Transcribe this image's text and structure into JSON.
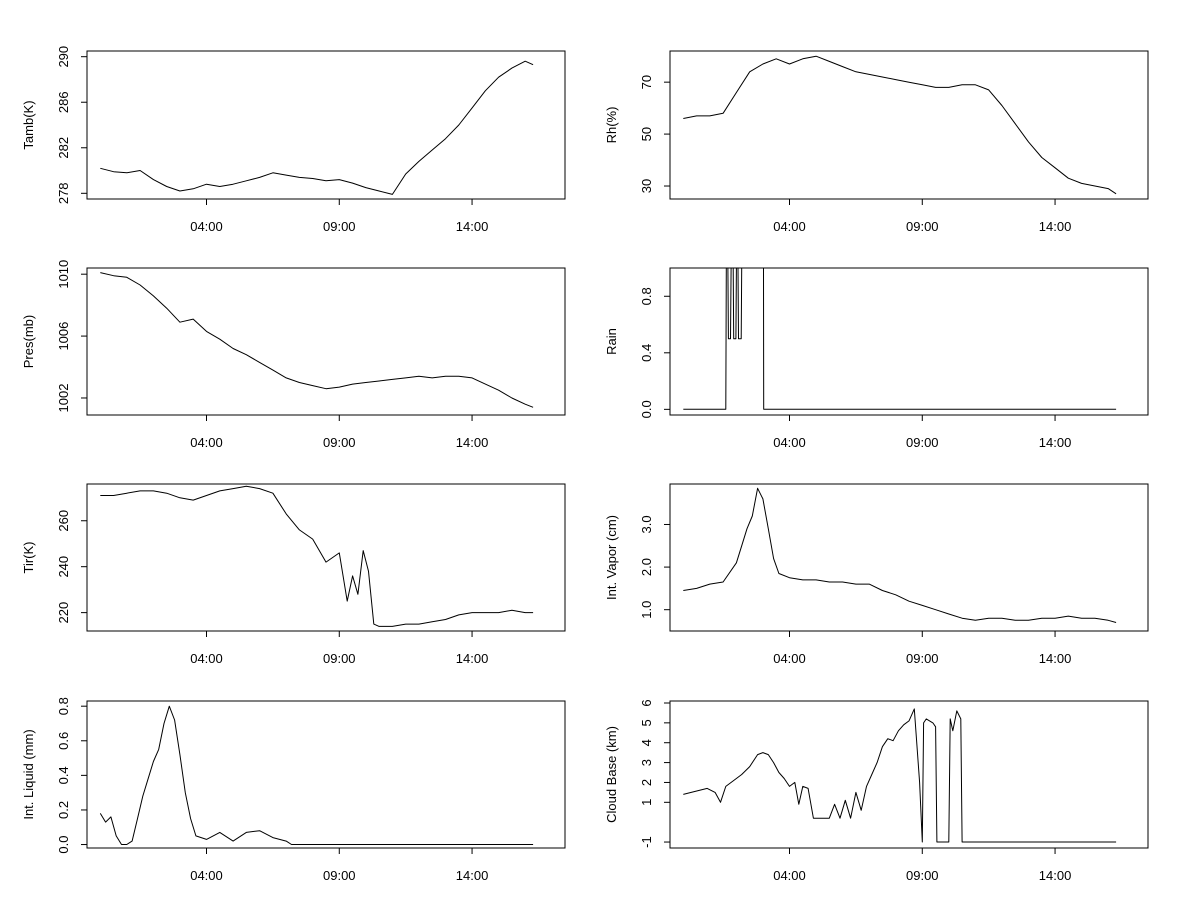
{
  "figure": {
    "background": "#ffffff",
    "ink": "#000000",
    "x_axis": {
      "ticks": [
        4,
        9,
        14
      ],
      "tick_labels": [
        "04:00",
        "09:00",
        "14:00"
      ],
      "xlim": [
        -0.5,
        17.5
      ],
      "unit": "hours"
    }
  },
  "chart_data": [
    {
      "type": "line",
      "ylabel": "Tamb(K)",
      "ylim": [
        277.5,
        290.5
      ],
      "yticks": [
        278,
        282,
        286,
        290
      ],
      "ytick_labels": [
        "278",
        "282",
        "286",
        "290"
      ],
      "x": [
        0.0,
        0.5,
        1.0,
        1.5,
        2.0,
        2.5,
        3.0,
        3.5,
        4.0,
        4.5,
        5.0,
        5.5,
        6.0,
        6.5,
        7.0,
        7.5,
        8.0,
        8.5,
        9.0,
        9.5,
        10.0,
        10.5,
        11.0,
        11.5,
        12.0,
        12.5,
        13.0,
        13.5,
        14.0,
        14.5,
        15.0,
        15.5,
        16.0,
        16.3
      ],
      "values": [
        280.2,
        279.9,
        279.8,
        280.0,
        279.2,
        278.6,
        278.2,
        278.4,
        278.8,
        278.6,
        278.8,
        279.1,
        279.4,
        279.8,
        279.6,
        279.4,
        279.3,
        279.1,
        279.2,
        278.9,
        278.5,
        278.2,
        277.9,
        279.7,
        280.8,
        281.8,
        282.8,
        284.0,
        285.5,
        287.0,
        288.2,
        289.0,
        289.6,
        289.3
      ]
    },
    {
      "type": "line",
      "ylabel": "Rh(%)",
      "ylim": [
        25,
        82
      ],
      "yticks": [
        30,
        50,
        70
      ],
      "ytick_labels": [
        "30",
        "50",
        "70"
      ],
      "x": [
        0.0,
        0.5,
        1.0,
        1.5,
        2.0,
        2.5,
        3.0,
        3.5,
        4.0,
        4.5,
        5.0,
        5.5,
        6.0,
        6.5,
        7.0,
        7.5,
        8.0,
        8.5,
        9.0,
        9.5,
        10.0,
        10.5,
        11.0,
        11.5,
        12.0,
        12.5,
        13.0,
        13.5,
        14.0,
        14.5,
        15.0,
        15.5,
        16.0,
        16.3
      ],
      "values": [
        56,
        57,
        57,
        58,
        66,
        74,
        77,
        79,
        77,
        79,
        80,
        78,
        76,
        74,
        73,
        72,
        71,
        70,
        69,
        68,
        68,
        69,
        69,
        67,
        61,
        54,
        47,
        41,
        37,
        33,
        31,
        30,
        29,
        27
      ]
    },
    {
      "type": "line",
      "ylabel": "Pres(mb)",
      "ylim": [
        1000.9,
        1010.4
      ],
      "yticks": [
        1002,
        1006,
        1010
      ],
      "ytick_labels": [
        "1002",
        "1006",
        "1010"
      ],
      "x": [
        0.0,
        0.5,
        1.0,
        1.5,
        2.0,
        2.5,
        3.0,
        3.5,
        4.0,
        4.5,
        5.0,
        5.5,
        6.0,
        6.5,
        7.0,
        7.5,
        8.0,
        8.5,
        9.0,
        9.5,
        10.0,
        10.5,
        11.0,
        11.5,
        12.0,
        12.5,
        13.0,
        13.5,
        14.0,
        14.5,
        15.0,
        15.5,
        16.0,
        16.3
      ],
      "values": [
        1010.1,
        1009.9,
        1009.8,
        1009.3,
        1008.6,
        1007.8,
        1006.9,
        1007.1,
        1006.3,
        1005.8,
        1005.2,
        1004.8,
        1004.3,
        1003.8,
        1003.3,
        1003.0,
        1002.8,
        1002.6,
        1002.7,
        1002.9,
        1003.0,
        1003.1,
        1003.2,
        1003.3,
        1003.4,
        1003.3,
        1003.4,
        1003.4,
        1003.3,
        1002.9,
        1002.5,
        1002.0,
        1001.6,
        1001.4
      ]
    },
    {
      "type": "line",
      "ylabel": "Rain",
      "ylim": [
        -0.04,
        1.0
      ],
      "yticks": [
        0.0,
        0.4,
        0.8
      ],
      "ytick_labels": [
        "0.0",
        "0.4",
        "0.8"
      ],
      "x": [
        0.0,
        1.6,
        1.62,
        1.68,
        1.7,
        1.78,
        1.8,
        1.88,
        1.9,
        1.98,
        2.0,
        2.06,
        2.08,
        2.18,
        2.2,
        2.26,
        2.28,
        3.02,
        3.03,
        16.3
      ],
      "values": [
        0,
        0,
        1,
        1,
        0.5,
        0.5,
        1,
        1,
        0.5,
        0.5,
        1,
        1,
        0.5,
        0.5,
        1,
        1,
        1,
        1,
        0,
        0
      ]
    },
    {
      "type": "line",
      "ylabel": "Tir(K)",
      "ylim": [
        212,
        276
      ],
      "yticks": [
        220,
        240,
        260
      ],
      "ytick_labels": [
        "220",
        "240",
        "260"
      ],
      "x": [
        0.0,
        0.5,
        1.0,
        1.5,
        2.0,
        2.5,
        3.0,
        3.5,
        4.0,
        4.5,
        5.0,
        5.5,
        6.0,
        6.5,
        7.0,
        7.5,
        8.0,
        8.5,
        9.0,
        9.3,
        9.5,
        9.7,
        9.9,
        10.1,
        10.3,
        10.5,
        11.0,
        11.5,
        12.0,
        12.5,
        13.0,
        13.5,
        14.0,
        14.5,
        15.0,
        15.5,
        16.0,
        16.3
      ],
      "values": [
        271,
        271,
        272,
        273,
        273,
        272,
        270,
        269,
        271,
        273,
        274,
        275,
        274,
        272,
        263,
        256,
        252,
        242,
        246,
        225,
        236,
        228,
        247,
        238,
        215,
        214,
        214,
        215,
        215,
        216,
        217,
        219,
        220,
        220,
        220,
        221,
        220,
        220
      ]
    },
    {
      "type": "line",
      "ylabel": "Int. Vapor (cm)",
      "ylim": [
        0.5,
        3.95
      ],
      "yticks": [
        1.0,
        2.0,
        3.0
      ],
      "ytick_labels": [
        "1.0",
        "2.0",
        "3.0"
      ],
      "x": [
        0.0,
        0.5,
        1.0,
        1.5,
        2.0,
        2.2,
        2.4,
        2.6,
        2.8,
        3.0,
        3.2,
        3.4,
        3.6,
        4.0,
        4.5,
        5.0,
        5.5,
        6.0,
        6.5,
        7.0,
        7.5,
        8.0,
        8.5,
        9.0,
        9.5,
        10.0,
        10.5,
        11.0,
        11.5,
        12.0,
        12.5,
        13.0,
        13.5,
        14.0,
        14.5,
        15.0,
        15.5,
        16.0,
        16.3
      ],
      "values": [
        1.45,
        1.5,
        1.6,
        1.65,
        2.1,
        2.5,
        2.9,
        3.2,
        3.85,
        3.6,
        2.9,
        2.2,
        1.85,
        1.75,
        1.7,
        1.7,
        1.65,
        1.65,
        1.6,
        1.6,
        1.45,
        1.35,
        1.2,
        1.1,
        1.0,
        0.9,
        0.8,
        0.75,
        0.8,
        0.8,
        0.75,
        0.75,
        0.8,
        0.8,
        0.85,
        0.8,
        0.8,
        0.75,
        0.7
      ]
    },
    {
      "type": "line",
      "ylabel": "Int. Liquid (mm)",
      "ylim": [
        -0.02,
        0.83
      ],
      "yticks": [
        0.0,
        0.2,
        0.4,
        0.6,
        0.8
      ],
      "ytick_labels": [
        "0.0",
        "0.2",
        "0.4",
        "0.6",
        "0.8"
      ],
      "x": [
        0.0,
        0.2,
        0.4,
        0.6,
        0.8,
        1.0,
        1.2,
        1.4,
        1.6,
        1.8,
        2.0,
        2.2,
        2.4,
        2.6,
        2.8,
        3.0,
        3.2,
        3.4,
        3.6,
        3.8,
        4.0,
        4.5,
        5.0,
        5.5,
        6.0,
        6.5,
        7.0,
        7.2,
        7.5,
        16.3
      ],
      "values": [
        0.18,
        0.13,
        0.16,
        0.05,
        0.0,
        0.0,
        0.02,
        0.15,
        0.28,
        0.38,
        0.48,
        0.55,
        0.7,
        0.8,
        0.72,
        0.52,
        0.3,
        0.15,
        0.05,
        0.04,
        0.03,
        0.07,
        0.02,
        0.07,
        0.08,
        0.04,
        0.02,
        0.0,
        0.0,
        0.0
      ]
    },
    {
      "type": "line",
      "ylabel": "Cloud Base (km)",
      "ylim": [
        -1.3,
        6.1
      ],
      "yticks": [
        -1,
        1,
        2,
        3,
        4,
        5,
        6
      ],
      "ytick_labels": [
        "-1",
        "1",
        "2",
        "3",
        "4",
        "5",
        "6"
      ],
      "x": [
        0.0,
        0.3,
        0.6,
        0.9,
        1.2,
        1.4,
        1.6,
        1.9,
        2.2,
        2.5,
        2.8,
        3.0,
        3.2,
        3.4,
        3.6,
        3.8,
        4.0,
        4.2,
        4.35,
        4.5,
        4.7,
        4.9,
        5.1,
        5.3,
        5.5,
        5.7,
        5.9,
        6.1,
        6.3,
        6.5,
        6.7,
        6.9,
        7.1,
        7.3,
        7.5,
        7.7,
        7.9,
        8.1,
        8.3,
        8.5,
        8.7,
        8.9,
        9.0,
        9.05,
        9.15,
        9.4,
        9.5,
        9.55,
        10.0,
        10.05,
        10.15,
        10.3,
        10.45,
        10.5,
        16.3
      ],
      "values": [
        1.4,
        1.5,
        1.6,
        1.7,
        1.5,
        1.0,
        1.8,
        2.1,
        2.4,
        2.8,
        3.4,
        3.5,
        3.4,
        3.0,
        2.5,
        2.2,
        1.8,
        2.0,
        0.9,
        1.8,
        1.7,
        0.2,
        0.2,
        0.2,
        0.2,
        0.9,
        0.2,
        1.1,
        0.2,
        1.5,
        0.6,
        1.8,
        2.4,
        3.0,
        3.8,
        4.2,
        4.1,
        4.6,
        4.9,
        5.1,
        5.7,
        2.0,
        -1.0,
        5.0,
        5.2,
        5.0,
        4.8,
        -1.0,
        -1.0,
        5.2,
        4.6,
        5.6,
        5.2,
        -1.0,
        -1.0
      ]
    }
  ]
}
